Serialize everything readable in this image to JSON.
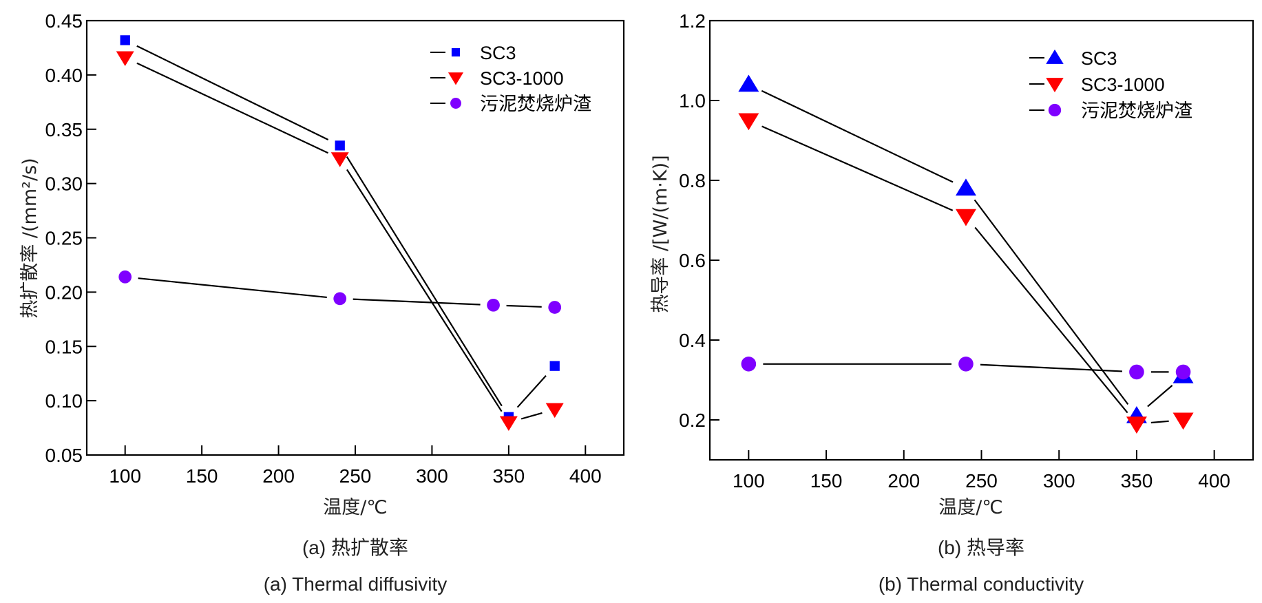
{
  "chart_data": [
    {
      "id": "a",
      "type": "line",
      "title": "",
      "caption_cn": "(a) 热扩散率",
      "caption_en": "(a) Thermal diffusivity",
      "xlabel": "温度/℃",
      "ylabel": "热扩散率 /(mm²/s)",
      "xlim": [
        75,
        425
      ],
      "ylim": [
        0.05,
        0.45
      ],
      "xticks": [
        100,
        150,
        200,
        250,
        300,
        350,
        400
      ],
      "yticks": [
        0.05,
        0.1,
        0.15,
        0.2,
        0.25,
        0.3,
        0.35,
        0.4,
        0.45
      ],
      "ytick_labels": [
        "0.05",
        "0.10",
        "0.15",
        "0.20",
        "0.25",
        "0.30",
        "0.35",
        "0.40",
        "0.45"
      ],
      "grid": false,
      "legend_position": "top-right",
      "series": [
        {
          "name": "SC3",
          "marker": "square",
          "color": "#0000ff",
          "x": [
            100,
            240,
            350,
            380
          ],
          "y": [
            0.432,
            0.335,
            0.085,
            0.132
          ]
        },
        {
          "name": "SC3-1000",
          "marker": "triangle-down",
          "color": "#ff0000",
          "x": [
            100,
            240,
            350,
            380
          ],
          "y": [
            0.416,
            0.323,
            0.08,
            0.092
          ]
        },
        {
          "name": "污泥焚烧炉渣",
          "marker": "circle",
          "color": "#7f00ff",
          "x": [
            100,
            240,
            340,
            380
          ],
          "y": [
            0.214,
            0.194,
            0.188,
            0.186
          ]
        }
      ]
    },
    {
      "id": "b",
      "type": "line",
      "title": "",
      "caption_cn": "(b) 热导率",
      "caption_en": "(b) Thermal conductivity",
      "xlabel": "温度/℃",
      "ylabel": "热导率 /[W/(m·K)]",
      "xlim": [
        75,
        425
      ],
      "ylim": [
        0.1,
        1.2
      ],
      "xticks": [
        100,
        150,
        200,
        250,
        300,
        350,
        400
      ],
      "yticks": [
        0.2,
        0.4,
        0.6,
        0.8,
        1.0,
        1.2
      ],
      "ytick_labels": [
        "0.2",
        "0.4",
        "0.6",
        "0.8",
        "1.0",
        "1.2"
      ],
      "grid": false,
      "legend_position": "top-right",
      "series": [
        {
          "name": "SC3",
          "marker": "triangle-up",
          "color": "#0000ff",
          "x": [
            100,
            240,
            350,
            380
          ],
          "y": [
            1.04,
            0.78,
            0.21,
            0.31
          ]
        },
        {
          "name": "SC3-1000",
          "marker": "triangle-down",
          "color": "#ff0000",
          "x": [
            100,
            240,
            350,
            380
          ],
          "y": [
            0.95,
            0.71,
            0.19,
            0.2
          ]
        },
        {
          "name": "污泥焚烧炉渣",
          "marker": "circle",
          "color": "#7f00ff",
          "x": [
            100,
            240,
            350,
            380
          ],
          "y": [
            0.34,
            0.34,
            0.32,
            0.32
          ]
        }
      ]
    }
  ]
}
